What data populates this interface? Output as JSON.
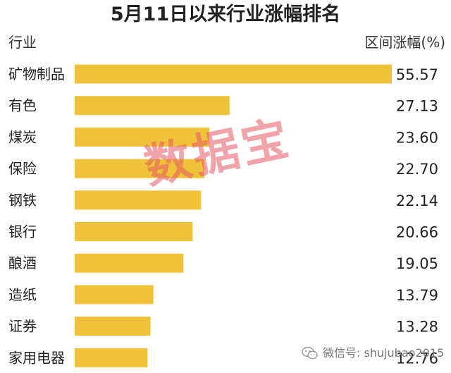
{
  "chart_data": {
    "type": "bar",
    "orientation": "horizontal",
    "title": "5月11日以来行业涨幅排名",
    "category_header": "行业",
    "value_header": "区间涨幅(%)",
    "categories": [
      "矿物制品",
      "有色",
      "煤炭",
      "保险",
      "钢铁",
      "银行",
      "酿酒",
      "造纸",
      "证券",
      "家用电器"
    ],
    "value_labels": [
      "55.57",
      "27.13",
      "23.60",
      "22.70",
      "22.14",
      "20.66",
      "19.05",
      "13.79",
      "13.28",
      "12.76"
    ],
    "values": [
      55.57,
      27.13,
      23.6,
      22.7,
      22.14,
      20.66,
      19.05,
      13.79,
      13.28,
      12.76
    ],
    "xlim": [
      0,
      55.57
    ],
    "grid": false,
    "bar_color": "#EFC23A"
  },
  "watermark": "数据宝",
  "wechat": {
    "icon": "wechat-icon",
    "text": "微信号: shujubao2015"
  }
}
